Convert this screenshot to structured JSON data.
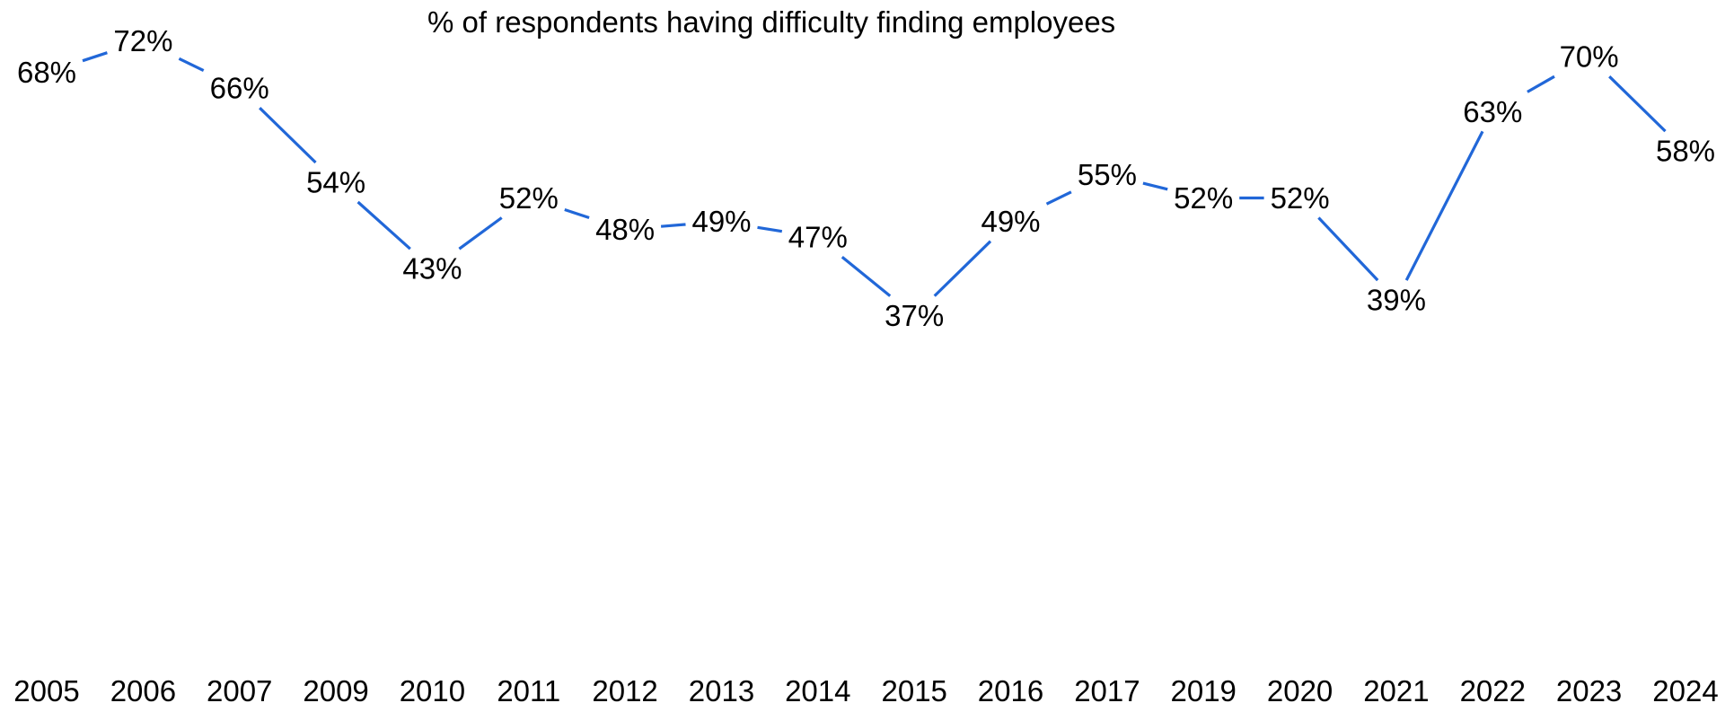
{
  "chart_data": {
    "type": "line",
    "title": "% of respondents having difficulty finding employees",
    "xlabel": "",
    "ylabel": "",
    "categories": [
      "2005",
      "2006",
      "2007",
      "2009",
      "2010",
      "2011",
      "2012",
      "2013",
      "2014",
      "2015",
      "2016",
      "2017",
      "2019",
      "2020",
      "2021",
      "2022",
      "2023",
      "2024"
    ],
    "series": [
      {
        "values": [
          68,
          72,
          66,
          54,
          43,
          52,
          48,
          49,
          47,
          37,
          49,
          55,
          52,
          52,
          39,
          63,
          70,
          58
        ],
        "labels": [
          "68%",
          "72%",
          "66%",
          "54%",
          "43%",
          "52%",
          "48%",
          "49%",
          "47%",
          "37%",
          "49%",
          "55%",
          "52%",
          "52%",
          "39%",
          "63%",
          "70%",
          "58%"
        ],
        "color": "#2167d8"
      }
    ],
    "grid": false,
    "legend": "none",
    "y_axis_visible": false
  }
}
